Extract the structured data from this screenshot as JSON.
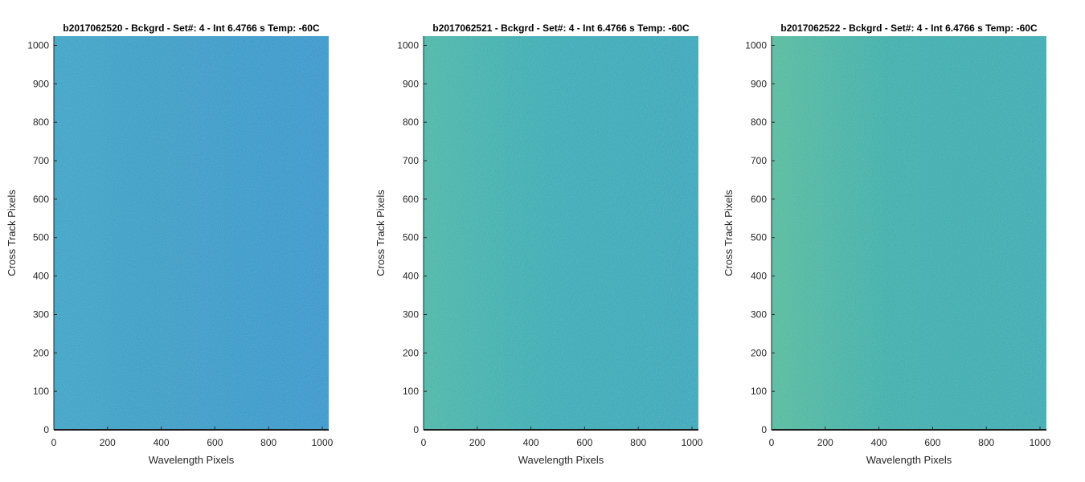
{
  "chart_data": [
    {
      "type": "heatmap",
      "title": "b2017062520 - Bckgrd - Set#: 4 - Int 6.4766 s Temp: -60C",
      "xlabel": "Wavelength Pixels",
      "ylabel": "Cross Track Pixels",
      "xlim": [
        0,
        1024
      ],
      "ylim": [
        0,
        1024
      ],
      "xticks": [
        0,
        200,
        400,
        600,
        800,
        1000
      ],
      "yticks": [
        0,
        100,
        200,
        300,
        400,
        500,
        600,
        700,
        800,
        900,
        1000
      ],
      "colors": {
        "base": "#1497c6",
        "left": "#1f9fc6",
        "right": "#0e92cc"
      }
    },
    {
      "type": "heatmap",
      "title": "b2017062521 - Bckgrd - Set#: 4 - Int 6.4766 s Temp: -60C",
      "xlabel": "Wavelength Pixels",
      "ylabel": "Cross Track Pixels",
      "xlim": [
        0,
        1024
      ],
      "ylim": [
        0,
        1024
      ],
      "xticks": [
        0,
        200,
        400,
        600,
        800,
        1000
      ],
      "yticks": [
        0,
        100,
        200,
        300,
        400,
        500,
        600,
        700,
        800,
        900,
        1000
      ],
      "colors": {
        "base": "#1aa8b4",
        "left": "#3bb3a6",
        "right": "#17a3ba"
      }
    },
    {
      "type": "heatmap",
      "title": "b2017062522 - Bckgrd - Set#: 4 - Int 6.4766 s Temp: -60C",
      "xlabel": "Wavelength Pixels",
      "ylabel": "Cross Track Pixels",
      "xlim": [
        0,
        1024
      ],
      "ylim": [
        0,
        1024
      ],
      "xticks": [
        0,
        200,
        400,
        600,
        800,
        1000
      ],
      "yticks": [
        0,
        100,
        200,
        300,
        400,
        500,
        600,
        700,
        800,
        900,
        1000
      ],
      "colors": {
        "base": "#22aaab",
        "left": "#48b89c",
        "right": "#1ba7b2"
      }
    }
  ]
}
